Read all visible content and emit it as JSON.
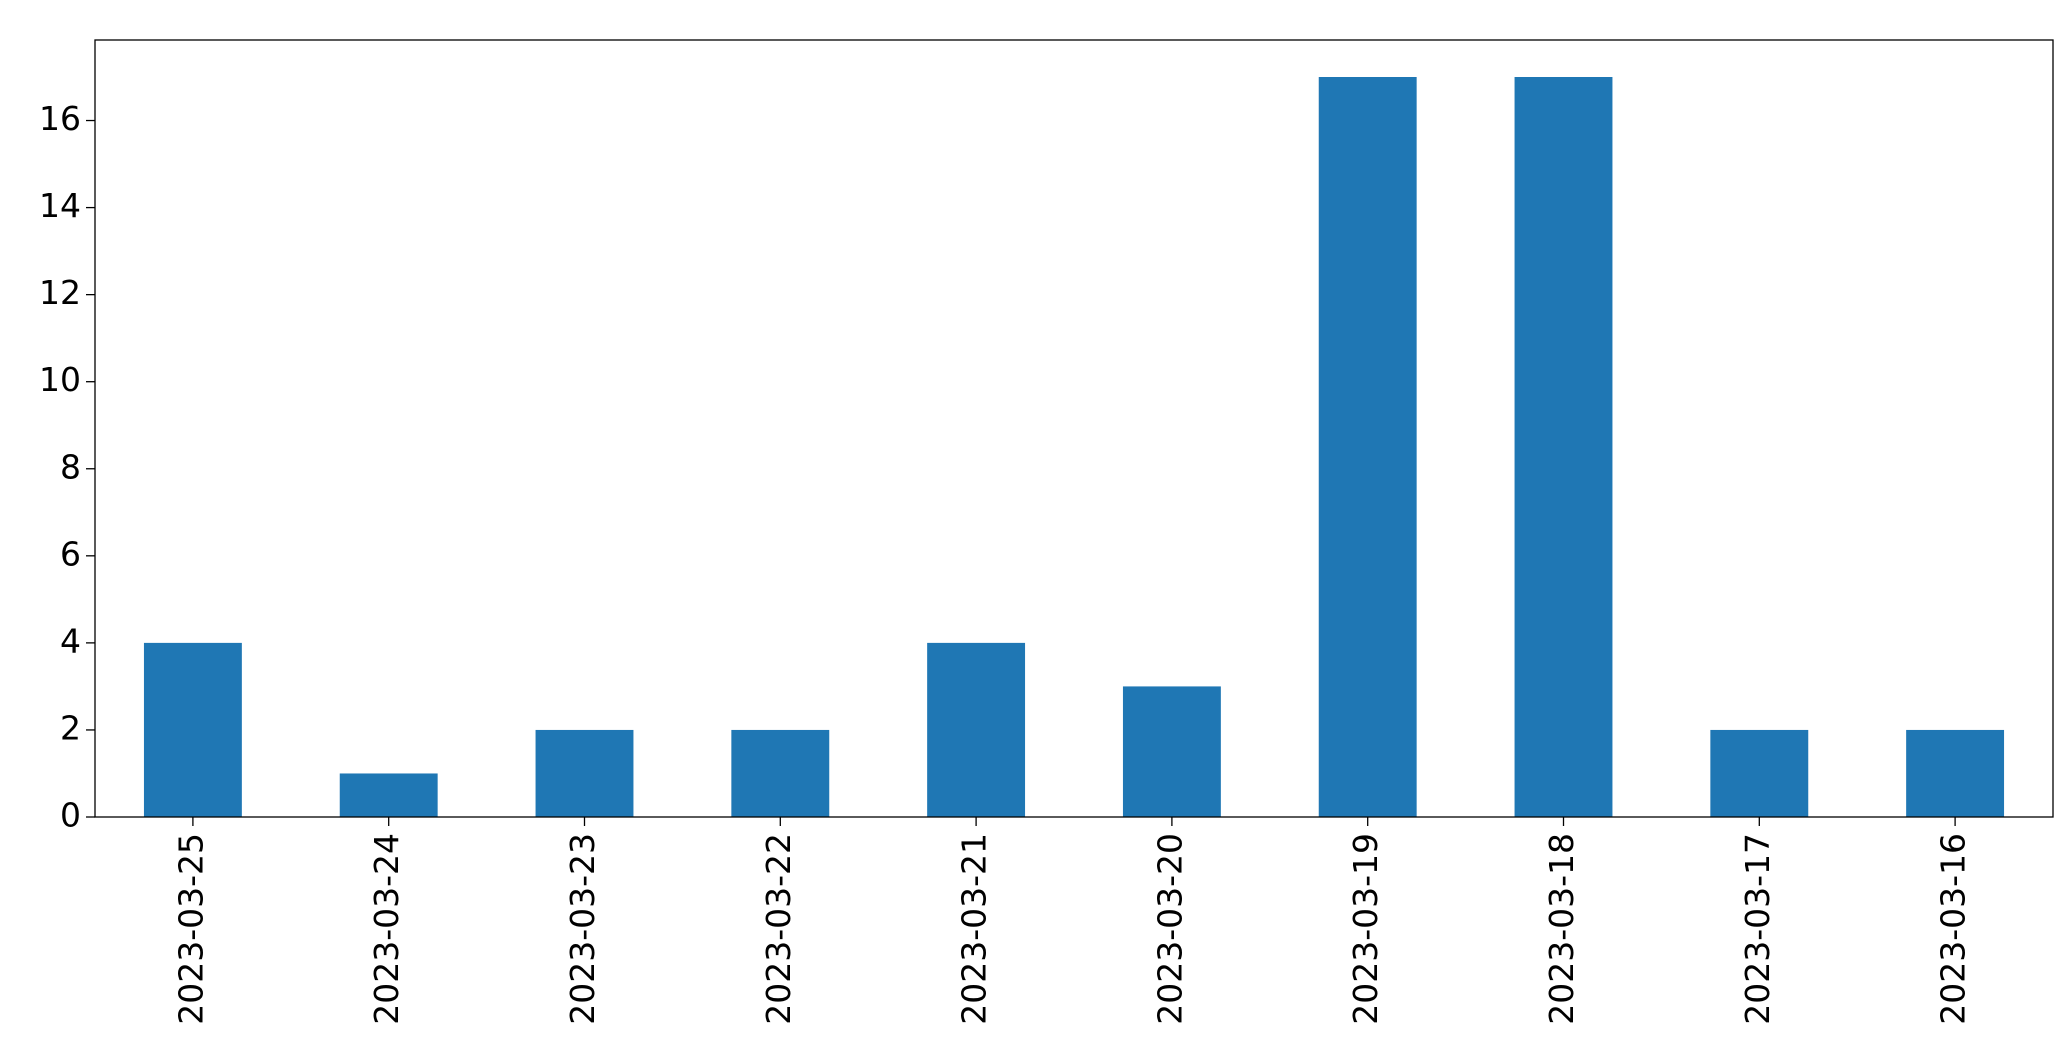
{
  "chart_data": {
    "type": "bar",
    "categories": [
      "2023-03-25",
      "2023-03-24",
      "2023-03-23",
      "2023-03-22",
      "2023-03-21",
      "2023-03-20",
      "2023-03-19",
      "2023-03-18",
      "2023-03-17",
      "2023-03-16"
    ],
    "values": [
      4,
      1,
      2,
      2,
      4,
      3,
      17,
      17,
      2,
      2
    ],
    "color": "#1f77b4",
    "ylim": [
      0,
      17.85
    ],
    "yticks": [
      0,
      2,
      4,
      6,
      8,
      10,
      12,
      14,
      16
    ],
    "grid": false
  }
}
